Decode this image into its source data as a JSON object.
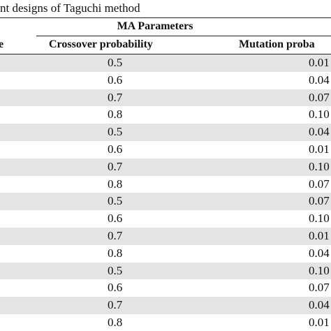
{
  "caption": "nt designs of Taguchi method",
  "table": {
    "group_header": "MA Parameters",
    "headers": [
      "e",
      "Crossover probability",
      "Mutation proba"
    ],
    "rows": [
      [
        "0.5",
        "0.01"
      ],
      [
        "0.6",
        "0.04"
      ],
      [
        "0.7",
        "0.07"
      ],
      [
        "0.8",
        "0.10"
      ],
      [
        "0.5",
        "0.04"
      ],
      [
        "0.6",
        "0.01"
      ],
      [
        "0.7",
        "0.10"
      ],
      [
        "0.8",
        "0.07"
      ],
      [
        "0.5",
        "0.07"
      ],
      [
        "0.6",
        "0.10"
      ],
      [
        "0.7",
        "0.01"
      ],
      [
        "0.8",
        "0.04"
      ],
      [
        "0.5",
        "0.10"
      ],
      [
        "0.6",
        "0.07"
      ],
      [
        "0.7",
        "0.04"
      ],
      [
        "0.8",
        "0.01"
      ]
    ]
  }
}
